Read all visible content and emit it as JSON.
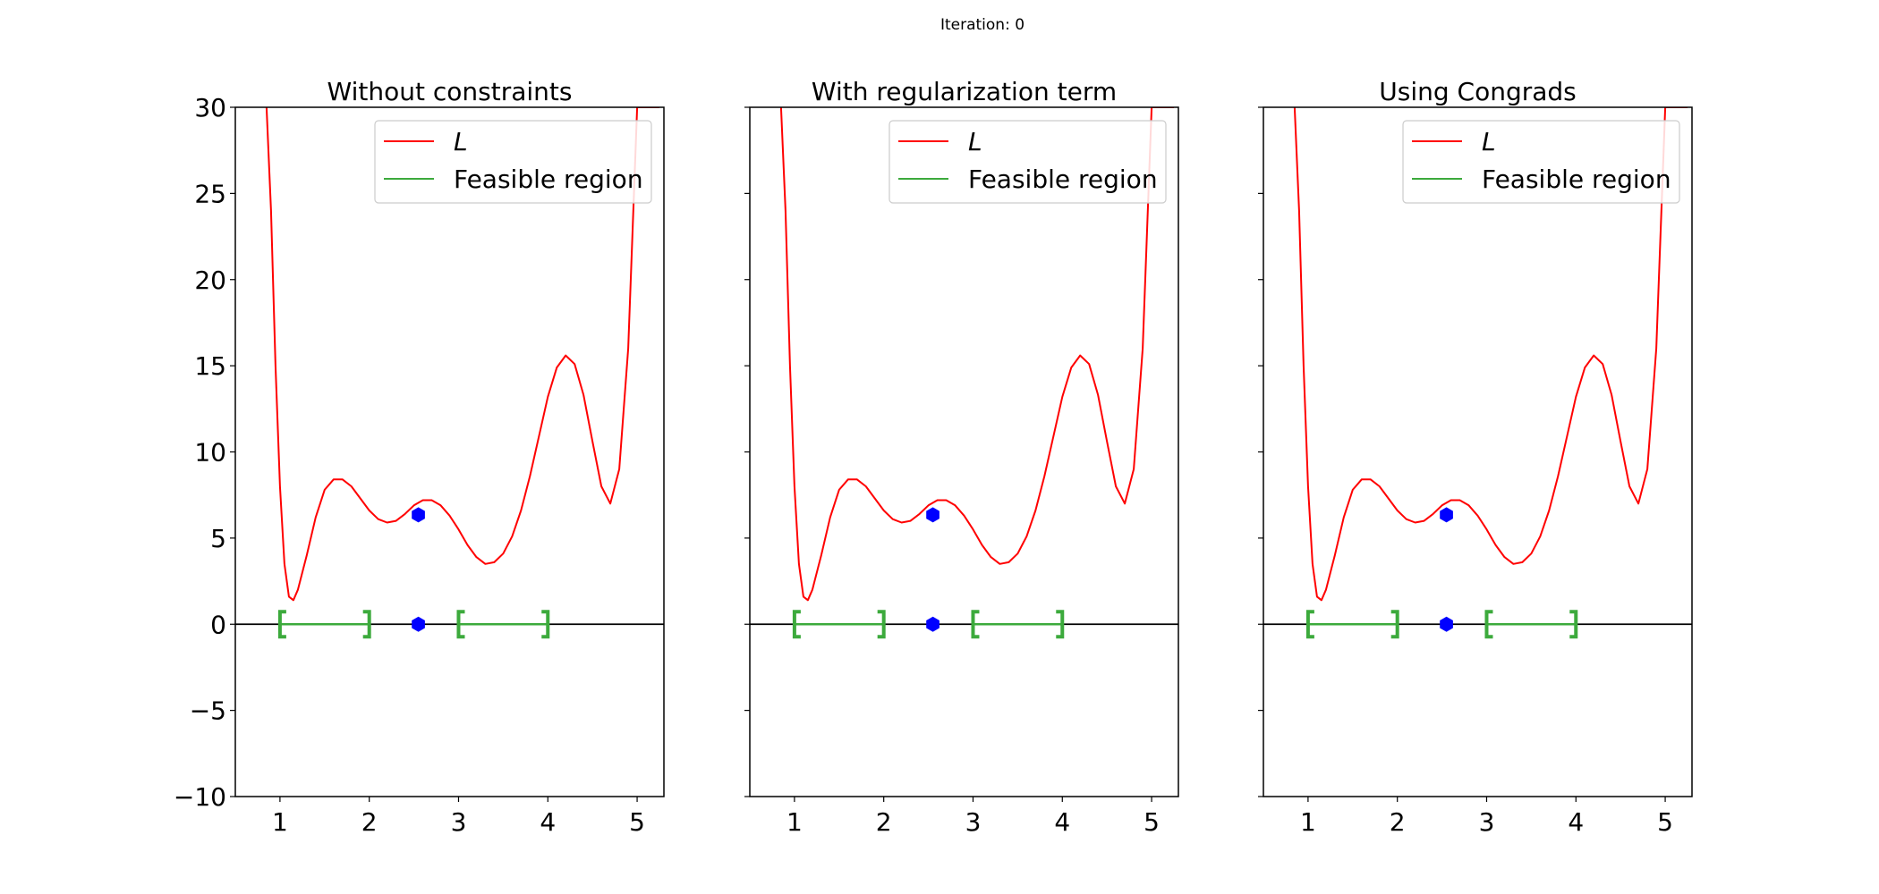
{
  "figure": {
    "suptitle": "Iteration: 0"
  },
  "colors": {
    "loss_curve": "#ff0000",
    "feasible_region": "#3caa3c",
    "point": "#0000ff",
    "zero_line": "#000000"
  },
  "chart_data": [
    {
      "type": "line",
      "title": "Without constraints",
      "xlim": [
        0.5,
        5.3
      ],
      "ylim": [
        -10,
        30
      ],
      "x_ticks": [
        "1",
        "2",
        "3",
        "4",
        "5"
      ],
      "y_ticks": [
        "30",
        "25",
        "20",
        "15",
        "10",
        "5",
        "0",
        "−5",
        "−10"
      ],
      "show_y_tick_labels": true,
      "legend": {
        "placement": "upper right",
        "entries": [
          "L",
          "Feasible region"
        ]
      },
      "series": [
        {
          "name": "L",
          "x": [
            0.85,
            0.9,
            0.95,
            1.0,
            1.05,
            1.1,
            1.15,
            1.2,
            1.3,
            1.4,
            1.5,
            1.6,
            1.7,
            1.8,
            1.9,
            2.0,
            2.1,
            2.2,
            2.3,
            2.4,
            2.5,
            2.6,
            2.7,
            2.8,
            2.9,
            3.0,
            3.1,
            3.2,
            3.3,
            3.4,
            3.5,
            3.6,
            3.7,
            3.8,
            3.9,
            4.0,
            4.1,
            4.2,
            4.3,
            4.4,
            4.5,
            4.6,
            4.7,
            4.8,
            4.9,
            5.0,
            5.05,
            5.1,
            5.15,
            5.2,
            5.25
          ],
          "y": [
            30,
            24,
            15,
            8,
            3.5,
            1.6,
            1.4,
            2.0,
            4.0,
            6.2,
            7.8,
            8.4,
            8.4,
            8.0,
            7.3,
            6.6,
            6.1,
            5.9,
            6.0,
            6.4,
            6.9,
            7.2,
            7.2,
            6.9,
            6.3,
            5.5,
            4.6,
            3.9,
            3.5,
            3.6,
            4.1,
            5.1,
            6.6,
            8.6,
            10.9,
            13.2,
            14.9,
            15.6,
            15.1,
            13.3,
            10.6,
            8.0,
            7.0,
            9.0,
            16.0,
            30.0,
            30,
            30,
            30,
            30,
            30
          ]
        }
      ],
      "feasible_region": [
        [
          1,
          2
        ],
        [
          3,
          4
        ]
      ],
      "point": {
        "x": 2.55,
        "y": 6.35
      },
      "point_on_axis": {
        "x": 2.55,
        "y": 0
      }
    },
    {
      "type": "line",
      "title": "With regularization term",
      "xlim": [
        0.5,
        5.3
      ],
      "ylim": [
        -10,
        30
      ],
      "x_ticks": [
        "1",
        "2",
        "3",
        "4",
        "5"
      ],
      "y_ticks": [
        "30",
        "25",
        "20",
        "15",
        "10",
        "5",
        "0",
        "−5",
        "−10"
      ],
      "show_y_tick_labels": false,
      "legend": {
        "placement": "upper right",
        "entries": [
          "L",
          "Feasible region"
        ]
      },
      "series": [
        {
          "name": "L",
          "x": [
            0.85,
            0.9,
            0.95,
            1.0,
            1.05,
            1.1,
            1.15,
            1.2,
            1.3,
            1.4,
            1.5,
            1.6,
            1.7,
            1.8,
            1.9,
            2.0,
            2.1,
            2.2,
            2.3,
            2.4,
            2.5,
            2.6,
            2.7,
            2.8,
            2.9,
            3.0,
            3.1,
            3.2,
            3.3,
            3.4,
            3.5,
            3.6,
            3.7,
            3.8,
            3.9,
            4.0,
            4.1,
            4.2,
            4.3,
            4.4,
            4.5,
            4.6,
            4.7,
            4.8,
            4.9,
            5.0,
            5.05,
            5.1,
            5.15,
            5.2,
            5.25
          ],
          "y": [
            30,
            24,
            15,
            8,
            3.5,
            1.6,
            1.4,
            2.0,
            4.0,
            6.2,
            7.8,
            8.4,
            8.4,
            8.0,
            7.3,
            6.6,
            6.1,
            5.9,
            6.0,
            6.4,
            6.9,
            7.2,
            7.2,
            6.9,
            6.3,
            5.5,
            4.6,
            3.9,
            3.5,
            3.6,
            4.1,
            5.1,
            6.6,
            8.6,
            10.9,
            13.2,
            14.9,
            15.6,
            15.1,
            13.3,
            10.6,
            8.0,
            7.0,
            9.0,
            16.0,
            30.0,
            30,
            30,
            30,
            30,
            30
          ]
        }
      ],
      "feasible_region": [
        [
          1,
          2
        ],
        [
          3,
          4
        ]
      ],
      "point": {
        "x": 2.55,
        "y": 6.35
      },
      "point_on_axis": {
        "x": 2.55,
        "y": 0
      }
    },
    {
      "type": "line",
      "title": "Using Congrads",
      "xlim": [
        0.5,
        5.3
      ],
      "ylim": [
        -10,
        30
      ],
      "x_ticks": [
        "1",
        "2",
        "3",
        "4",
        "5"
      ],
      "y_ticks": [
        "30",
        "25",
        "20",
        "15",
        "10",
        "5",
        "0",
        "−5",
        "−10"
      ],
      "show_y_tick_labels": false,
      "legend": {
        "placement": "upper right",
        "entries": [
          "L",
          "Feasible region"
        ]
      },
      "series": [
        {
          "name": "L",
          "x": [
            0.85,
            0.9,
            0.95,
            1.0,
            1.05,
            1.1,
            1.15,
            1.2,
            1.3,
            1.4,
            1.5,
            1.6,
            1.7,
            1.8,
            1.9,
            2.0,
            2.1,
            2.2,
            2.3,
            2.4,
            2.5,
            2.6,
            2.7,
            2.8,
            2.9,
            3.0,
            3.1,
            3.2,
            3.3,
            3.4,
            3.5,
            3.6,
            3.7,
            3.8,
            3.9,
            4.0,
            4.1,
            4.2,
            4.3,
            4.4,
            4.5,
            4.6,
            4.7,
            4.8,
            4.9,
            5.0,
            5.05,
            5.1,
            5.15,
            5.2,
            5.25
          ],
          "y": [
            30,
            24,
            15,
            8,
            3.5,
            1.6,
            1.4,
            2.0,
            4.0,
            6.2,
            7.8,
            8.4,
            8.4,
            8.0,
            7.3,
            6.6,
            6.1,
            5.9,
            6.0,
            6.4,
            6.9,
            7.2,
            7.2,
            6.9,
            6.3,
            5.5,
            4.6,
            3.9,
            3.5,
            3.6,
            4.1,
            5.1,
            6.6,
            8.6,
            10.9,
            13.2,
            14.9,
            15.6,
            15.1,
            13.3,
            10.6,
            8.0,
            7.0,
            9.0,
            16.0,
            30.0,
            30,
            30,
            30,
            30,
            30
          ]
        }
      ],
      "feasible_region": [
        [
          1,
          2
        ],
        [
          3,
          4
        ]
      ],
      "point": {
        "x": 2.55,
        "y": 6.35
      },
      "point_on_axis": {
        "x": 2.55,
        "y": 0
      }
    }
  ]
}
